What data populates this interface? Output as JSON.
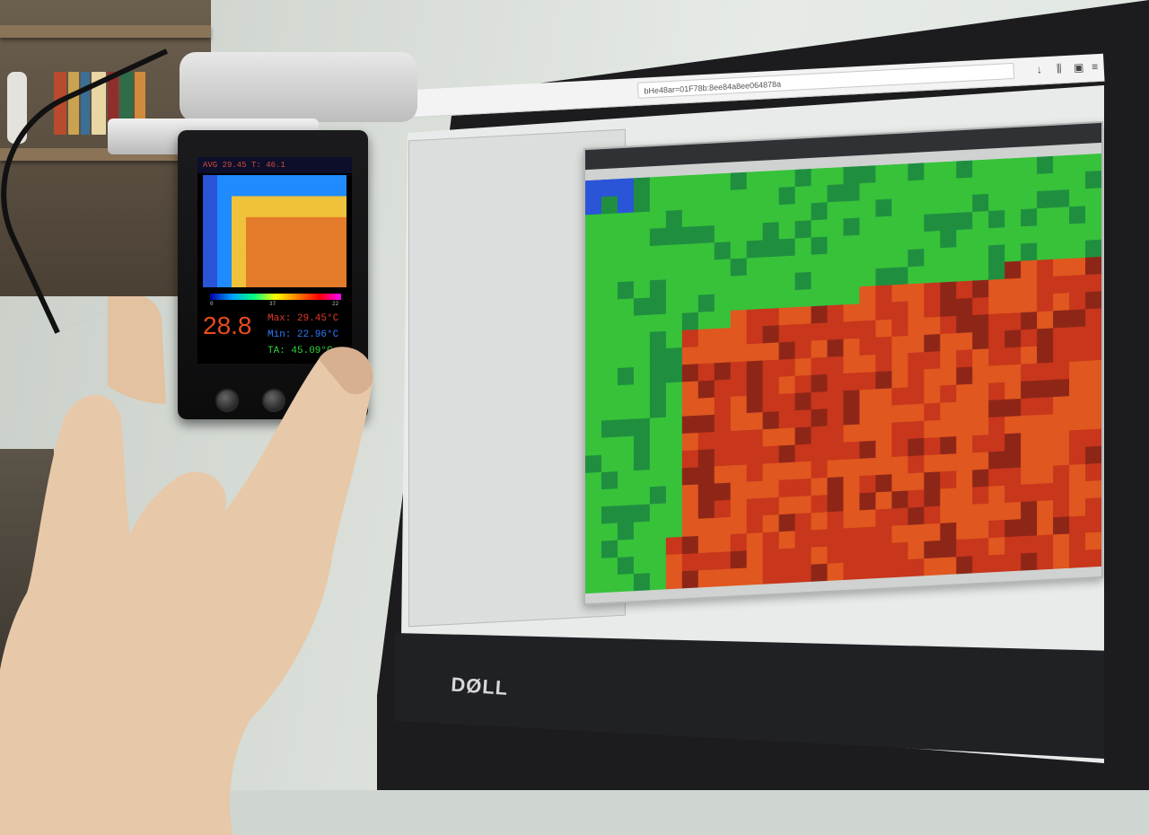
{
  "device": {
    "header": "AVG 29.45  T: 46.1",
    "scale_ticks": [
      "0",
      "37",
      "22"
    ],
    "reading": "28.8",
    "max": "Max: 29.45°C",
    "min": "Min: 22.96°C",
    "ambient": "TA: 45.09°C",
    "colors": {
      "reading": "#e84a1f",
      "max": "#e0392b",
      "min": "#2f7bff",
      "ambient": "#2fd23c"
    }
  },
  "monitor": {
    "brand": "DØLL",
    "url": "bHe48ar=01F78b:8ee84a8ee064878a"
  },
  "heatmap": {
    "palette": {
      "blue": "#2a55d6",
      "green": "#37c23a",
      "dark_green": "#1f8f3f",
      "orange": "#e0571f",
      "red": "#c8361c",
      "dark_red": "#8e2618"
    }
  }
}
